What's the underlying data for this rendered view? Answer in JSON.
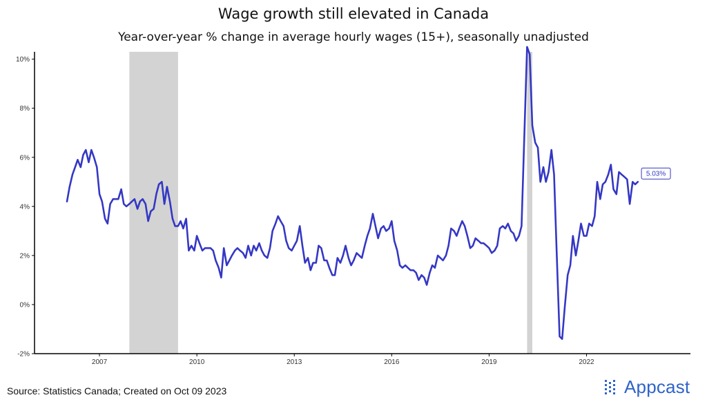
{
  "title": "Wage growth still elevated in Canada",
  "subtitle": "Year-over-year % change in average hourly wages (15+), seasonally unadjusted",
  "source": "Source: Statistics Canada; Created on Oct 09 2023",
  "logo": {
    "text": "Appcast",
    "color": "#2f63c9",
    "icon": "dot-grid-icon"
  },
  "colors": {
    "line": "#3437c4",
    "recession": "#d3d3d3",
    "axis": "#000000"
  },
  "chart_data": {
    "type": "line",
    "title": "Wage growth still elevated in Canada",
    "subtitle": "Year-over-year % change in average hourly wages (15+), seasonally unadjusted",
    "xlabel": "",
    "ylabel": "",
    "xlim": [
      2005.0,
      2025.2
    ],
    "ylim": [
      -2,
      10.3
    ],
    "x_ticks": [
      2007,
      2010,
      2013,
      2016,
      2019,
      2022
    ],
    "y_ticks": [
      -2,
      0,
      2,
      4,
      6,
      8,
      10
    ],
    "y_tick_labels": [
      "-2%",
      "0%",
      "2%",
      "4%",
      "6%",
      "8%",
      "10%"
    ],
    "grid": false,
    "recession_bands": [
      [
        2007.92,
        2009.42
      ],
      [
        2020.17,
        2020.33
      ]
    ],
    "annotation": {
      "x": 2023.67,
      "y": 5.03,
      "label": "5.03%"
    },
    "series": [
      {
        "values": [
          [
            2006.0,
            4.2
          ],
          [
            2006.08,
            4.8
          ],
          [
            2006.17,
            5.3
          ],
          [
            2006.25,
            5.6
          ],
          [
            2006.33,
            5.9
          ],
          [
            2006.42,
            5.6
          ],
          [
            2006.5,
            6.1
          ],
          [
            2006.58,
            6.3
          ],
          [
            2006.67,
            5.8
          ],
          [
            2006.75,
            6.3
          ],
          [
            2006.83,
            6.0
          ],
          [
            2006.92,
            5.6
          ],
          [
            2007.0,
            4.5
          ],
          [
            2007.08,
            4.2
          ],
          [
            2007.17,
            3.5
          ],
          [
            2007.25,
            3.3
          ],
          [
            2007.33,
            4.1
          ],
          [
            2007.42,
            4.3
          ],
          [
            2007.5,
            4.3
          ],
          [
            2007.58,
            4.3
          ],
          [
            2007.67,
            4.7
          ],
          [
            2007.75,
            4.1
          ],
          [
            2007.83,
            4.0
          ],
          [
            2007.92,
            4.1
          ],
          [
            2008.0,
            4.2
          ],
          [
            2008.08,
            4.3
          ],
          [
            2008.17,
            3.9
          ],
          [
            2008.25,
            4.2
          ],
          [
            2008.33,
            4.3
          ],
          [
            2008.42,
            4.1
          ],
          [
            2008.5,
            3.4
          ],
          [
            2008.58,
            3.8
          ],
          [
            2008.67,
            3.9
          ],
          [
            2008.75,
            4.5
          ],
          [
            2008.83,
            4.9
          ],
          [
            2008.92,
            5.0
          ],
          [
            2009.0,
            4.1
          ],
          [
            2009.08,
            4.8
          ],
          [
            2009.17,
            4.2
          ],
          [
            2009.25,
            3.5
          ],
          [
            2009.33,
            3.2
          ],
          [
            2009.42,
            3.2
          ],
          [
            2009.5,
            3.4
          ],
          [
            2009.58,
            3.1
          ],
          [
            2009.67,
            3.5
          ],
          [
            2009.75,
            2.2
          ],
          [
            2009.83,
            2.4
          ],
          [
            2009.92,
            2.2
          ],
          [
            2010.0,
            2.8
          ],
          [
            2010.08,
            2.5
          ],
          [
            2010.17,
            2.2
          ],
          [
            2010.25,
            2.3
          ],
          [
            2010.33,
            2.3
          ],
          [
            2010.42,
            2.3
          ],
          [
            2010.5,
            2.2
          ],
          [
            2010.58,
            1.8
          ],
          [
            2010.67,
            1.5
          ],
          [
            2010.75,
            1.1
          ],
          [
            2010.83,
            2.3
          ],
          [
            2010.92,
            1.6
          ],
          [
            2011.0,
            1.8
          ],
          [
            2011.08,
            2.0
          ],
          [
            2011.17,
            2.2
          ],
          [
            2011.25,
            2.3
          ],
          [
            2011.33,
            2.2
          ],
          [
            2011.42,
            2.1
          ],
          [
            2011.5,
            1.9
          ],
          [
            2011.58,
            2.4
          ],
          [
            2011.67,
            2.0
          ],
          [
            2011.75,
            2.4
          ],
          [
            2011.83,
            2.2
          ],
          [
            2011.92,
            2.5
          ],
          [
            2012.0,
            2.2
          ],
          [
            2012.08,
            2.0
          ],
          [
            2012.17,
            1.9
          ],
          [
            2012.25,
            2.3
          ],
          [
            2012.33,
            3.0
          ],
          [
            2012.42,
            3.3
          ],
          [
            2012.5,
            3.6
          ],
          [
            2012.58,
            3.4
          ],
          [
            2012.67,
            3.2
          ],
          [
            2012.75,
            2.6
          ],
          [
            2012.83,
            2.3
          ],
          [
            2012.92,
            2.2
          ],
          [
            2013.0,
            2.4
          ],
          [
            2013.08,
            2.6
          ],
          [
            2013.17,
            3.2
          ],
          [
            2013.25,
            2.4
          ],
          [
            2013.33,
            1.7
          ],
          [
            2013.42,
            1.9
          ],
          [
            2013.5,
            1.4
          ],
          [
            2013.58,
            1.7
          ],
          [
            2013.67,
            1.7
          ],
          [
            2013.75,
            2.4
          ],
          [
            2013.83,
            2.3
          ],
          [
            2013.92,
            1.8
          ],
          [
            2014.0,
            1.8
          ],
          [
            2014.08,
            1.5
          ],
          [
            2014.17,
            1.2
          ],
          [
            2014.25,
            1.2
          ],
          [
            2014.33,
            1.9
          ],
          [
            2014.42,
            1.7
          ],
          [
            2014.5,
            2.0
          ],
          [
            2014.58,
            2.4
          ],
          [
            2014.67,
            1.9
          ],
          [
            2014.75,
            1.6
          ],
          [
            2014.83,
            1.8
          ],
          [
            2014.92,
            2.1
          ],
          [
            2015.0,
            2.0
          ],
          [
            2015.08,
            1.9
          ],
          [
            2015.17,
            2.4
          ],
          [
            2015.25,
            2.8
          ],
          [
            2015.33,
            3.1
          ],
          [
            2015.42,
            3.7
          ],
          [
            2015.5,
            3.2
          ],
          [
            2015.58,
            2.7
          ],
          [
            2015.67,
            3.1
          ],
          [
            2015.75,
            3.2
          ],
          [
            2015.83,
            3.0
          ],
          [
            2015.92,
            3.1
          ],
          [
            2016.0,
            3.4
          ],
          [
            2016.08,
            2.6
          ],
          [
            2016.17,
            2.2
          ],
          [
            2016.25,
            1.6
          ],
          [
            2016.33,
            1.5
          ],
          [
            2016.42,
            1.6
          ],
          [
            2016.5,
            1.5
          ],
          [
            2016.58,
            1.4
          ],
          [
            2016.67,
            1.4
          ],
          [
            2016.75,
            1.3
          ],
          [
            2016.83,
            1.0
          ],
          [
            2016.92,
            1.2
          ],
          [
            2017.0,
            1.1
          ],
          [
            2017.08,
            0.8
          ],
          [
            2017.17,
            1.3
          ],
          [
            2017.25,
            1.6
          ],
          [
            2017.33,
            1.5
          ],
          [
            2017.42,
            2.0
          ],
          [
            2017.5,
            1.9
          ],
          [
            2017.58,
            1.8
          ],
          [
            2017.67,
            2.0
          ],
          [
            2017.75,
            2.4
          ],
          [
            2017.83,
            3.1
          ],
          [
            2017.92,
            3.0
          ],
          [
            2018.0,
            2.8
          ],
          [
            2018.08,
            3.1
          ],
          [
            2018.17,
            3.4
          ],
          [
            2018.25,
            3.2
          ],
          [
            2018.33,
            2.8
          ],
          [
            2018.42,
            2.3
          ],
          [
            2018.5,
            2.4
          ],
          [
            2018.58,
            2.7
          ],
          [
            2018.67,
            2.6
          ],
          [
            2018.75,
            2.5
          ],
          [
            2018.83,
            2.5
          ],
          [
            2018.92,
            2.4
          ],
          [
            2019.0,
            2.3
          ],
          [
            2019.08,
            2.1
          ],
          [
            2019.17,
            2.2
          ],
          [
            2019.25,
            2.4
          ],
          [
            2019.33,
            3.1
          ],
          [
            2019.42,
            3.2
          ],
          [
            2019.5,
            3.1
          ],
          [
            2019.58,
            3.3
          ],
          [
            2019.67,
            3.0
          ],
          [
            2019.75,
            2.9
          ],
          [
            2019.83,
            2.6
          ],
          [
            2019.92,
            2.8
          ],
          [
            2020.0,
            3.2
          ],
          [
            2020.17,
            10.5
          ],
          [
            2020.25,
            10.2
          ],
          [
            2020.33,
            7.3
          ],
          [
            2020.42,
            6.6
          ],
          [
            2020.5,
            6.4
          ],
          [
            2020.58,
            5.0
          ],
          [
            2020.67,
            5.6
          ],
          [
            2020.75,
            5.0
          ],
          [
            2020.83,
            5.4
          ],
          [
            2020.92,
            6.3
          ],
          [
            2021.0,
            5.3
          ],
          [
            2021.08,
            2.2
          ],
          [
            2021.17,
            -1.3
          ],
          [
            2021.25,
            -1.4
          ],
          [
            2021.33,
            -0.1
          ],
          [
            2021.42,
            1.2
          ],
          [
            2021.5,
            1.6
          ],
          [
            2021.58,
            2.8
          ],
          [
            2021.67,
            2.0
          ],
          [
            2021.75,
            2.6
          ],
          [
            2021.83,
            3.3
          ],
          [
            2021.92,
            2.8
          ],
          [
            2022.0,
            2.8
          ],
          [
            2022.08,
            3.3
          ],
          [
            2022.17,
            3.2
          ],
          [
            2022.25,
            3.6
          ],
          [
            2022.33,
            5.0
          ],
          [
            2022.42,
            4.3
          ],
          [
            2022.5,
            4.9
          ],
          [
            2022.58,
            5.0
          ],
          [
            2022.67,
            5.3
          ],
          [
            2022.75,
            5.7
          ],
          [
            2022.83,
            4.7
          ],
          [
            2022.92,
            4.5
          ],
          [
            2023.0,
            5.4
          ],
          [
            2023.08,
            5.3
          ],
          [
            2023.17,
            5.2
          ],
          [
            2023.25,
            5.1
          ],
          [
            2023.33,
            4.1
          ],
          [
            2023.42,
            5.0
          ],
          [
            2023.5,
            4.9
          ],
          [
            2023.58,
            5.0
          ]
        ]
      }
    ]
  }
}
